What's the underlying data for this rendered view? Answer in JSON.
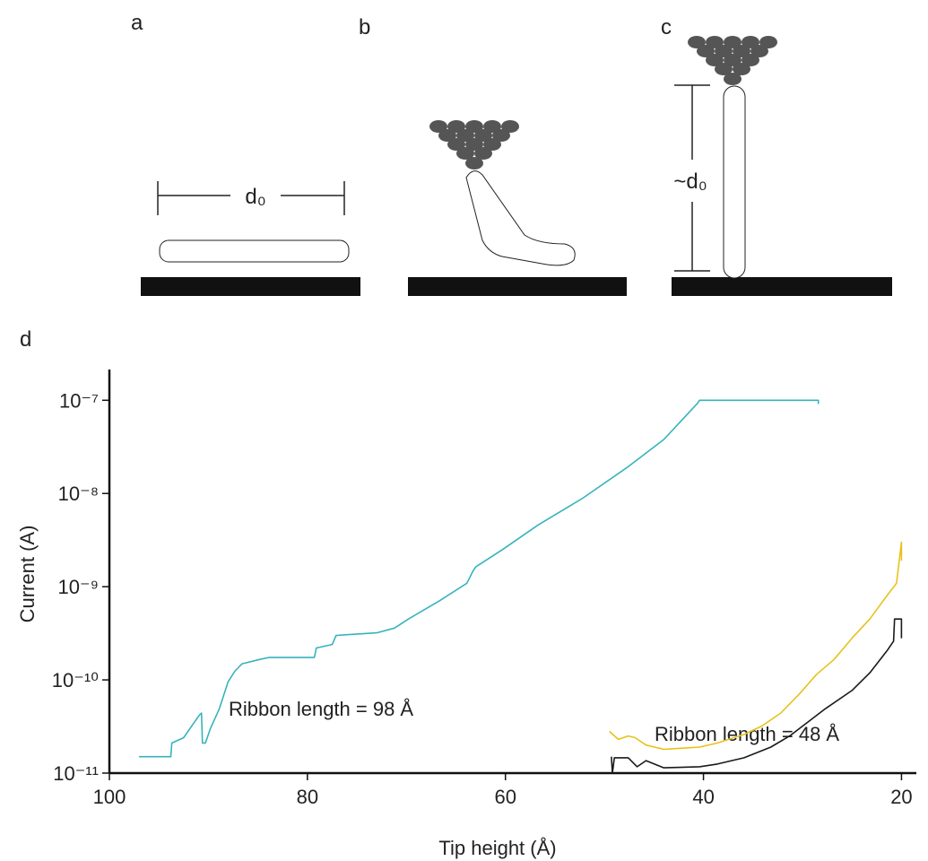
{
  "figure": {
    "panel_labels": [
      "a",
      "b",
      "c",
      "d"
    ],
    "length_labels": [
      "d₀",
      "~d₀"
    ]
  },
  "chart_data": {
    "type": "line",
    "xlabel": "Tip height (Å)",
    "ylabel": "Current (A)",
    "xlim": [
      100,
      18.5
    ],
    "ylim": [
      1e-11,
      2e-07
    ],
    "yscale": "log",
    "xticks": [
      100,
      80,
      60,
      40,
      20
    ],
    "yticks": [
      {
        "value": 1e-11,
        "label": "10⁻¹¹"
      },
      {
        "value": 1e-10,
        "label": "10⁻¹⁰"
      },
      {
        "value": 1e-09,
        "label": "10⁻⁹"
      },
      {
        "value": 1e-08,
        "label": "10⁻⁸"
      },
      {
        "value": 1e-07,
        "label": "10⁻⁷"
      }
    ],
    "annotations": [
      "Ribbon length = 98 Å",
      "Ribbon length = 48 Å"
    ],
    "series": [
      {
        "color": "#36b3bd",
        "x": [
          97.0,
          93.8,
          93.7,
          92.5,
          91.6,
          90.9,
          90.7,
          90.6,
          90.3,
          89.8,
          88.9,
          88.0,
          87.3,
          86.6,
          84.8,
          83.9,
          79.3,
          79.1,
          77.5,
          77.1,
          73.0,
          71.2,
          69.8,
          66.7,
          63.9,
          63.3,
          63.0,
          60.3,
          56.7,
          52.2,
          47.6,
          44.0,
          40.6,
          40.4,
          28.4,
          28.4
        ],
        "values": [
          1.5e-11,
          1.5e-11,
          2.1e-11,
          2.4e-11,
          3.3e-11,
          4.2e-11,
          4.4e-11,
          2.1e-11,
          2.1e-11,
          3e-11,
          4.9e-11,
          9.6e-11,
          1.25e-10,
          1.49e-10,
          1.66e-10,
          1.74e-10,
          1.74e-10,
          2.2e-10,
          2.4e-10,
          3e-10,
          3.2e-10,
          3.6e-10,
          4.5e-10,
          7e-10,
          1.09e-09,
          1.46e-09,
          1.63e-09,
          2.5e-09,
          4.6e-09,
          8.9e-09,
          1.94e-08,
          3.8e-08,
          9.3e-08,
          1e-07,
          1e-07,
          9.1e-08
        ]
      },
      {
        "color": "#e6c21c",
        "x": [
          49.5,
          48.6,
          47.6,
          46.9,
          45.8,
          44.0,
          40.4,
          38.6,
          35.9,
          34.1,
          32.2,
          30.4,
          28.6,
          26.8,
          25.0,
          23.2,
          21.4,
          20.5,
          20.0,
          20.0
        ],
        "values": [
          2.8e-11,
          2.3e-11,
          2.5e-11,
          2.4e-11,
          2e-11,
          1.8e-11,
          1.9e-11,
          2.1e-11,
          2.6e-11,
          3.2e-11,
          4.4e-11,
          6.9e-11,
          1.14e-10,
          1.66e-10,
          2.8e-10,
          4.5e-10,
          8.2e-10,
          1.09e-09,
          3e-09,
          1.9e-09
        ]
      },
      {
        "color": "#1a1a1a",
        "x": [
          49.3,
          49.2,
          49.0,
          47.6,
          46.7,
          45.8,
          44.0,
          40.4,
          38.6,
          35.9,
          33.2,
          31.3,
          29.5,
          27.7,
          25.0,
          23.2,
          21.4,
          20.8,
          20.7,
          20.0,
          20.0
        ],
        "values": [
          1.5e-11,
          1e-11,
          1.46e-11,
          1.46e-11,
          1.17e-11,
          1.36e-11,
          1.14e-11,
          1.17e-11,
          1.25e-11,
          1.46e-11,
          1.9e-11,
          2.5e-11,
          3.5e-11,
          4.9e-11,
          7.7e-11,
          1.19e-10,
          2.1e-10,
          2.6e-10,
          4.5e-10,
          4.5e-10,
          2.8e-10
        ]
      }
    ]
  }
}
